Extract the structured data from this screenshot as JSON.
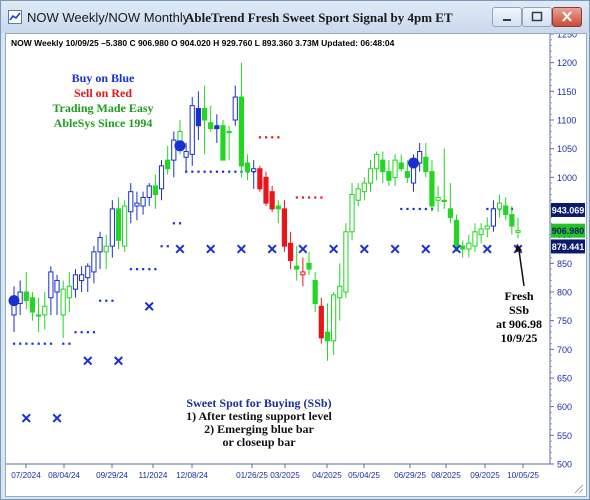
{
  "window": {
    "title_tab": "NOW Weekly/NOW Monthly",
    "title_main": "AbleTrend Fresh Sweet Sport Signal by 4pm ET"
  },
  "chart_header": "NOW  Weekly 10/09/25 –5.380 C 906.980 O 904.020 H 929.760 L 893.360 3.73M Updated: 06:48:04",
  "legend_text": {
    "line1": "Buy on Blue",
    "line2": "Sell on Red",
    "line3": "Trading Made Easy",
    "line4": "AbleSys Since 1994",
    "color1": "#1a2fd1",
    "color2": "#e8161a",
    "color3": "#1f9e1f",
    "color4": "#1f9e1f"
  },
  "annotation_fresh": {
    "line1": "Fresh",
    "line2": "SSb",
    "line3": "at 906.98",
    "line4": "10/9/25"
  },
  "annotation_sweet": {
    "line1": "Sweet Spot for Buying (SSb)",
    "line2": "1) After testing support level",
    "line3": "2) Emerging blue bar",
    "line4": "or closeup bar"
  },
  "price_tags": [
    {
      "label": "943.069",
      "value": 943.069,
      "bg": "#0a1a6e",
      "fg": "#ffffff"
    },
    {
      "label": "906.980",
      "value": 906.98,
      "bg": "#22c322",
      "fg": "#0a1a6e"
    },
    {
      "label": "879.441",
      "value": 879.441,
      "bg": "#0a1a6e",
      "fg": "#ffffff"
    }
  ],
  "colors": {
    "up": "#1a2fd1",
    "down": "#e8161a",
    "neutral": "#22d622",
    "axis_text": "#1a2f9e"
  },
  "chart_data": {
    "type": "candlestick",
    "yaxis_ticks": [
      500,
      550,
      600,
      650,
      700,
      750,
      800,
      850,
      900,
      950,
      1000,
      1050,
      1100,
      1150,
      1200,
      1250
    ],
    "ylim": [
      500,
      1250
    ],
    "xaxis_ticks": [
      "07/2024",
      "08/04/24",
      "09/29/24",
      "11/2024",
      "12/08/24",
      "01/26/25",
      "03/2025",
      "04/2025",
      "05/04/25",
      "06/29/25",
      "08/2025",
      "09/2025",
      "10/05/25"
    ],
    "bars": [
      {
        "o": 760,
        "h": 810,
        "l": 730,
        "c": 790,
        "color": "up"
      },
      {
        "o": 780,
        "h": 820,
        "l": 760,
        "c": 800,
        "color": "up"
      },
      {
        "o": 800,
        "h": 835,
        "l": 770,
        "c": 785,
        "color": "neutral"
      },
      {
        "o": 790,
        "h": 800,
        "l": 750,
        "c": 765,
        "color": "neutral"
      },
      {
        "o": 760,
        "h": 790,
        "l": 730,
        "c": 760,
        "color": "neutral"
      },
      {
        "o": 760,
        "h": 800,
        "l": 735,
        "c": 775,
        "color": "neutral"
      },
      {
        "o": 790,
        "h": 845,
        "l": 760,
        "c": 835,
        "color": "up"
      },
      {
        "o": 800,
        "h": 830,
        "l": 760,
        "c": 820,
        "color": "up"
      },
      {
        "o": 760,
        "h": 820,
        "l": 720,
        "c": 805,
        "color": "neutral"
      },
      {
        "o": 790,
        "h": 835,
        "l": 765,
        "c": 810,
        "color": "neutral"
      },
      {
        "o": 805,
        "h": 840,
        "l": 790,
        "c": 830,
        "color": "up"
      },
      {
        "o": 820,
        "h": 845,
        "l": 800,
        "c": 830,
        "color": "up"
      },
      {
        "o": 825,
        "h": 850,
        "l": 800,
        "c": 845,
        "color": "up"
      },
      {
        "o": 835,
        "h": 880,
        "l": 815,
        "c": 870,
        "color": "up"
      },
      {
        "o": 870,
        "h": 905,
        "l": 840,
        "c": 895,
        "color": "up"
      },
      {
        "o": 870,
        "h": 900,
        "l": 840,
        "c": 880,
        "color": "neutral"
      },
      {
        "o": 880,
        "h": 960,
        "l": 860,
        "c": 945,
        "color": "up"
      },
      {
        "o": 945,
        "h": 965,
        "l": 875,
        "c": 890,
        "color": "neutral"
      },
      {
        "o": 880,
        "h": 960,
        "l": 870,
        "c": 950,
        "color": "neutral"
      },
      {
        "o": 940,
        "h": 990,
        "l": 920,
        "c": 975,
        "color": "up"
      },
      {
        "o": 950,
        "h": 975,
        "l": 925,
        "c": 955,
        "color": "up"
      },
      {
        "o": 950,
        "h": 975,
        "l": 935,
        "c": 965,
        "color": "up"
      },
      {
        "o": 965,
        "h": 990,
        "l": 950,
        "c": 985,
        "color": "up"
      },
      {
        "o": 985,
        "h": 1005,
        "l": 945,
        "c": 970,
        "color": "neutral"
      },
      {
        "o": 980,
        "h": 1030,
        "l": 960,
        "c": 1020,
        "color": "up"
      },
      {
        "o": 1030,
        "h": 1055,
        "l": 1005,
        "c": 1015,
        "color": "neutral"
      },
      {
        "o": 1030,
        "h": 1080,
        "l": 1000,
        "c": 1065,
        "color": "up"
      },
      {
        "o": 1060,
        "h": 1100,
        "l": 1040,
        "c": 1080,
        "color": "neutral"
      },
      {
        "o": 1035,
        "h": 1060,
        "l": 1010,
        "c": 1045,
        "color": "up"
      },
      {
        "o": 1040,
        "h": 1140,
        "l": 1020,
        "c": 1125,
        "color": "up"
      },
      {
        "o": 1120,
        "h": 1150,
        "l": 1065,
        "c": 1090,
        "color": "up"
      },
      {
        "o": 1120,
        "h": 1160,
        "l": 1040,
        "c": 1100,
        "color": "neutral"
      },
      {
        "o": 1095,
        "h": 1125,
        "l": 1080,
        "c": 1085,
        "color": "neutral"
      },
      {
        "o": 1090,
        "h": 1110,
        "l": 1060,
        "c": 1085,
        "color": "up"
      },
      {
        "o": 1090,
        "h": 1100,
        "l": 1030,
        "c": 1030,
        "color": "neutral"
      },
      {
        "o": 1080,
        "h": 1090,
        "l": 1030,
        "c": 1080,
        "color": "neutral"
      },
      {
        "o": 1100,
        "h": 1160,
        "l": 1090,
        "c": 1140,
        "color": "up"
      },
      {
        "o": 1140,
        "h": 1200,
        "l": 1000,
        "c": 1020,
        "color": "neutral"
      },
      {
        "o": 1025,
        "h": 1040,
        "l": 995,
        "c": 1010,
        "color": "neutral"
      },
      {
        "o": 1010,
        "h": 1030,
        "l": 980,
        "c": 1015,
        "color": "up"
      },
      {
        "o": 1015,
        "h": 1020,
        "l": 975,
        "c": 980,
        "color": "down"
      },
      {
        "o": 1000,
        "h": 1010,
        "l": 950,
        "c": 955,
        "color": "down"
      },
      {
        "o": 975,
        "h": 985,
        "l": 940,
        "c": 945,
        "color": "down"
      },
      {
        "o": 950,
        "h": 960,
        "l": 920,
        "c": 945,
        "color": "neutral"
      },
      {
        "o": 945,
        "h": 960,
        "l": 870,
        "c": 880,
        "color": "down"
      },
      {
        "o": 885,
        "h": 905,
        "l": 840,
        "c": 855,
        "color": "down"
      },
      {
        "o": 845,
        "h": 880,
        "l": 820,
        "c": 840,
        "color": "neutral"
      },
      {
        "o": 830,
        "h": 860,
        "l": 810,
        "c": 835,
        "color": "down"
      },
      {
        "o": 850,
        "h": 870,
        "l": 830,
        "c": 840,
        "color": "neutral"
      },
      {
        "o": 820,
        "h": 835,
        "l": 765,
        "c": 780,
        "color": "neutral"
      },
      {
        "o": 775,
        "h": 790,
        "l": 710,
        "c": 720,
        "color": "down"
      },
      {
        "o": 730,
        "h": 780,
        "l": 680,
        "c": 715,
        "color": "neutral"
      },
      {
        "o": 715,
        "h": 800,
        "l": 690,
        "c": 795,
        "color": "neutral"
      },
      {
        "o": 790,
        "h": 850,
        "l": 750,
        "c": 810,
        "color": "neutral"
      },
      {
        "o": 800,
        "h": 920,
        "l": 790,
        "c": 905,
        "color": "neutral"
      },
      {
        "o": 905,
        "h": 990,
        "l": 890,
        "c": 970,
        "color": "neutral"
      },
      {
        "o": 960,
        "h": 990,
        "l": 950,
        "c": 980,
        "color": "neutral"
      },
      {
        "o": 975,
        "h": 1000,
        "l": 960,
        "c": 990,
        "color": "neutral"
      },
      {
        "o": 990,
        "h": 1030,
        "l": 975,
        "c": 1015,
        "color": "neutral"
      },
      {
        "o": 1015,
        "h": 1045,
        "l": 995,
        "c": 1040,
        "color": "neutral"
      },
      {
        "o": 1030,
        "h": 1045,
        "l": 990,
        "c": 1010,
        "color": "neutral"
      },
      {
        "o": 1010,
        "h": 1030,
        "l": 985,
        "c": 995,
        "color": "neutral"
      },
      {
        "o": 1000,
        "h": 1040,
        "l": 985,
        "c": 1030,
        "color": "neutral"
      },
      {
        "o": 1025,
        "h": 1040,
        "l": 1010,
        "c": 1015,
        "color": "neutral"
      },
      {
        "o": 1010,
        "h": 1030,
        "l": 990,
        "c": 1000,
        "color": "neutral"
      },
      {
        "o": 990,
        "h": 1040,
        "l": 975,
        "c": 1025,
        "color": "up"
      },
      {
        "o": 1025,
        "h": 1060,
        "l": 1010,
        "c": 1045,
        "color": "up"
      },
      {
        "o": 1035,
        "h": 1060,
        "l": 1000,
        "c": 1010,
        "color": "neutral"
      },
      {
        "o": 1010,
        "h": 1030,
        "l": 940,
        "c": 950,
        "color": "neutral"
      },
      {
        "o": 960,
        "h": 985,
        "l": 940,
        "c": 965,
        "color": "neutral"
      },
      {
        "o": 960,
        "h": 1050,
        "l": 945,
        "c": 960,
        "color": "neutral"
      },
      {
        "o": 945,
        "h": 990,
        "l": 920,
        "c": 930,
        "color": "neutral"
      },
      {
        "o": 925,
        "h": 935,
        "l": 870,
        "c": 880,
        "color": "neutral"
      },
      {
        "o": 880,
        "h": 890,
        "l": 860,
        "c": 875,
        "color": "neutral"
      },
      {
        "o": 875,
        "h": 900,
        "l": 860,
        "c": 885,
        "color": "neutral"
      },
      {
        "o": 880,
        "h": 920,
        "l": 870,
        "c": 905,
        "color": "neutral"
      },
      {
        "o": 900,
        "h": 920,
        "l": 885,
        "c": 910,
        "color": "neutral"
      },
      {
        "o": 910,
        "h": 930,
        "l": 895,
        "c": 915,
        "color": "neutral"
      },
      {
        "o": 915,
        "h": 960,
        "l": 905,
        "c": 945,
        "color": "up"
      },
      {
        "o": 945,
        "h": 970,
        "l": 930,
        "c": 955,
        "color": "neutral"
      },
      {
        "o": 950,
        "h": 965,
        "l": 925,
        "c": 935,
        "color": "neutral"
      },
      {
        "o": 935,
        "h": 950,
        "l": 900,
        "c": 915,
        "color": "neutral"
      },
      {
        "o": 904.02,
        "h": 929.76,
        "l": 893.36,
        "c": 906.98,
        "color": "neutral"
      }
    ],
    "support_x_marks": [
      {
        "i": 2,
        "y": 580
      },
      {
        "i": 7,
        "y": 580
      },
      {
        "i": 12,
        "y": 680
      },
      {
        "i": 17,
        "y": 680
      },
      {
        "i": 22,
        "y": 775
      },
      {
        "i": 27,
        "y": 875
      },
      {
        "i": 32,
        "y": 875
      },
      {
        "i": 37,
        "y": 875
      },
      {
        "i": 42,
        "y": 875
      },
      {
        "i": 47,
        "y": 875
      },
      {
        "i": 52,
        "y": 875
      },
      {
        "i": 57,
        "y": 875
      },
      {
        "i": 62,
        "y": 875
      },
      {
        "i": 67,
        "y": 875
      },
      {
        "i": 72,
        "y": 875
      },
      {
        "i": 77,
        "y": 875
      },
      {
        "i": 82,
        "y": 875
      }
    ],
    "blue_dot_segments": [
      {
        "from": 0,
        "to": 6,
        "y": 710
      },
      {
        "from": 8,
        "to": 9,
        "y": 710
      },
      {
        "from": 10,
        "to": 13,
        "y": 730
      },
      {
        "from": 14,
        "to": 16,
        "y": 785
      },
      {
        "from": 19,
        "to": 23,
        "y": 840
      },
      {
        "from": 24,
        "to": 25,
        "y": 880
      },
      {
        "from": 26,
        "to": 27,
        "y": 920
      },
      {
        "from": 28,
        "to": 39,
        "y": 1010
      },
      {
        "from": 63,
        "to": 68,
        "y": 945
      },
      {
        "from": 77,
        "to": 81,
        "y": 945
      }
    ],
    "red_dot_segments": [
      {
        "from": 40,
        "to": 43,
        "y": 1070
      },
      {
        "from": 46,
        "to": 50,
        "y": 965
      }
    ],
    "big_blue_dots": [
      {
        "i": 0,
        "y": 785
      },
      {
        "i": 27,
        "y": 1055
      },
      {
        "i": 65,
        "y": 1025
      }
    ]
  }
}
